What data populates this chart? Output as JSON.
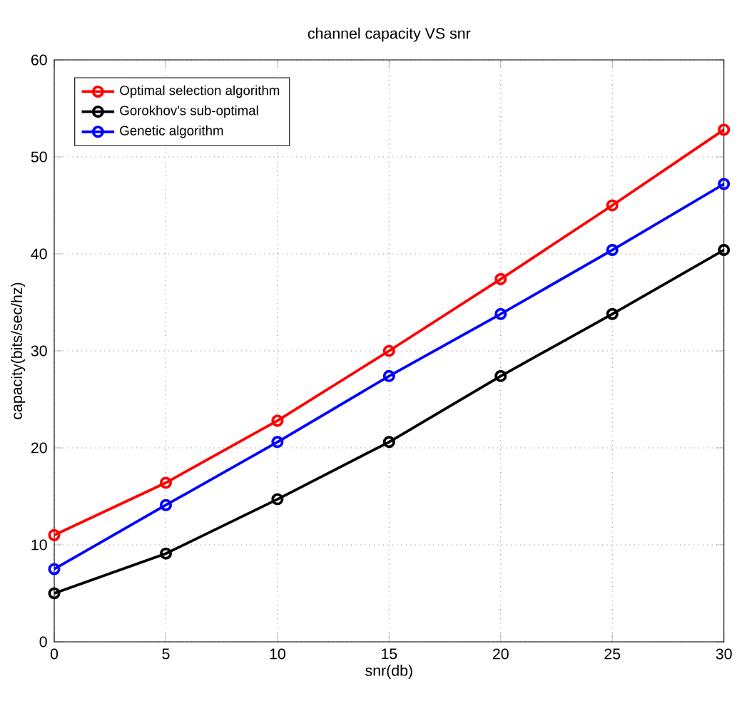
{
  "chart_data": {
    "type": "line",
    "title": "channel capacity VS snr",
    "xlabel": "snr(db)",
    "ylabel": "capacity(bits/sec/hz)",
    "x": [
      0,
      5,
      10,
      15,
      20,
      25,
      30
    ],
    "series": [
      {
        "name": "Optimal selection algorithm",
        "color": "#ff0000",
        "values": [
          11,
          16.4,
          22.8,
          30,
          37.4,
          45,
          52.8
        ]
      },
      {
        "name": "Gorokhov's sub-optimal",
        "color": "#000000",
        "values": [
          5,
          9.1,
          14.7,
          20.6,
          27.4,
          33.8,
          40.4
        ]
      },
      {
        "name": "Genetic algorithm",
        "color": "#0000ff",
        "values": [
          7.5,
          14.1,
          20.6,
          27.4,
          33.8,
          40.4,
          47.2
        ]
      }
    ],
    "xlim": [
      0,
      30
    ],
    "ylim": [
      0,
      60
    ],
    "xticks": [
      0,
      5,
      10,
      15,
      20,
      25,
      30
    ],
    "yticks": [
      0,
      10,
      20,
      30,
      40,
      50,
      60
    ],
    "grid": true,
    "legend": "top left",
    "marker": "circle",
    "line_style": "solid"
  }
}
